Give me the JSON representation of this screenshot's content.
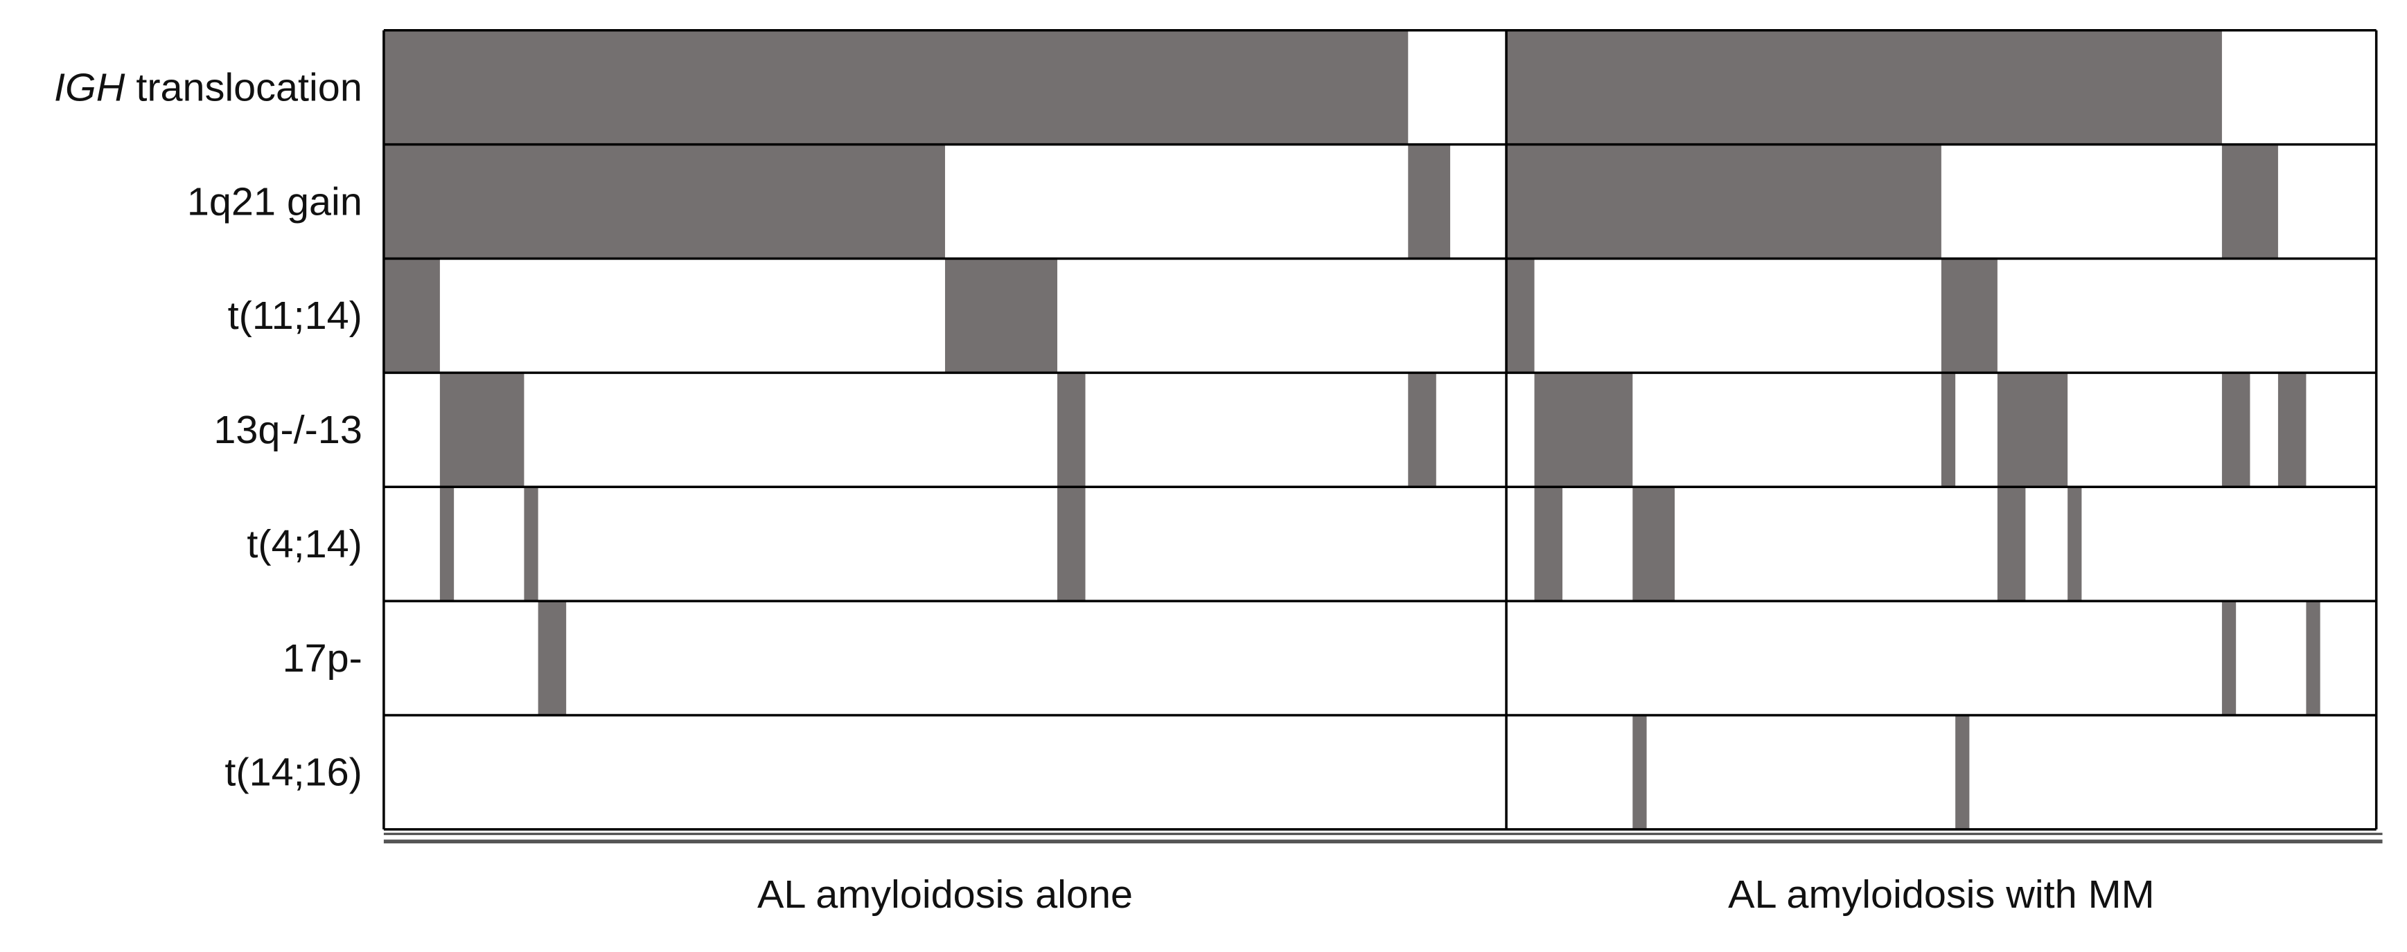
{
  "chart_data": {
    "type": "oncoprint",
    "color": "#747070",
    "groups": [
      {
        "label": "AL amyloidosis alone",
        "patients": 80
      },
      {
        "label": "AL amyloidosis with MM",
        "patients": 62
      }
    ],
    "rows": [
      {
        "label_parts": [
          {
            "text": "IGH",
            "italic": true
          },
          {
            "text": " translocation"
          }
        ],
        "segments": [
          [
            [
              0,
              73
            ]
          ],
          [
            [
              0,
              51
            ]
          ]
        ]
      },
      {
        "label_parts": [
          {
            "text": "1q21 gain"
          }
        ],
        "segments": [
          [
            [
              0,
              40
            ],
            [
              73,
              3
            ]
          ],
          [
            [
              0,
              31
            ],
            [
              51,
              4
            ]
          ]
        ]
      },
      {
        "label_parts": [
          {
            "text": "t(11;14)"
          }
        ],
        "segments": [
          [
            [
              0,
              4
            ],
            [
              40,
              8
            ]
          ],
          [
            [
              0,
              2
            ],
            [
              31,
              4
            ]
          ]
        ]
      },
      {
        "label_parts": [
          {
            "text": "13q-/-13"
          }
        ],
        "segments": [
          [
            [
              4,
              6
            ],
            [
              48,
              2
            ],
            [
              73,
              2
            ]
          ],
          [
            [
              2,
              7
            ],
            [
              31,
              1
            ],
            [
              35,
              5
            ],
            [
              51,
              2
            ],
            [
              55,
              2
            ]
          ]
        ]
      },
      {
        "label_parts": [
          {
            "text": "t(4;14)"
          }
        ],
        "segments": [
          [
            [
              4,
              1
            ],
            [
              10,
              1
            ],
            [
              48,
              2
            ]
          ],
          [
            [
              2,
              2
            ],
            [
              9,
              3
            ],
            [
              35,
              2
            ],
            [
              40,
              1
            ]
          ]
        ]
      },
      {
        "label_parts": [
          {
            "text": "17p-"
          }
        ],
        "segments": [
          [
            [
              11,
              2
            ]
          ],
          [
            [
              51,
              1
            ],
            [
              57,
              1
            ]
          ]
        ]
      },
      {
        "label_parts": [
          {
            "text": "t(14;16)"
          }
        ],
        "segments": [
          [],
          [
            [
              9,
              1
            ],
            [
              32,
              1
            ]
          ]
        ]
      }
    ]
  }
}
